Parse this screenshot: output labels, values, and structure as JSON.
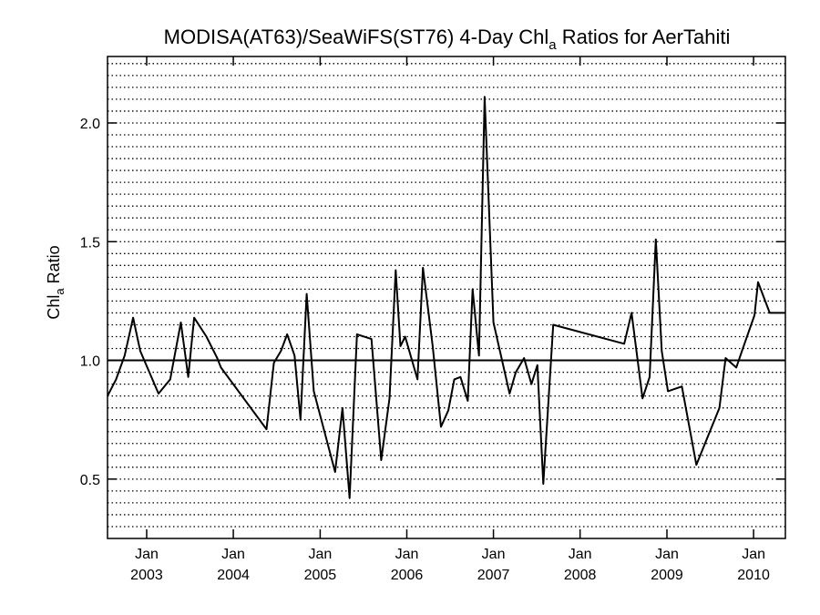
{
  "title": {
    "prefix": "MODISA(AT63)/SeaWiFS(ST76) 4-Day Chl",
    "subscript": "a",
    "suffix": " Ratios for AerTahiti"
  },
  "ylabel": {
    "prefix": "Chl",
    "subscript": "a",
    "suffix": " Ratio"
  },
  "chart_data": {
    "type": "line",
    "title": "MODISA(AT63)/SeaWiFS(ST76) 4-Day Chla Ratios for AerTahiti",
    "ylabel": "Chla Ratio",
    "xlabel": "",
    "xlim": [
      "2002-07-20",
      "2010-05-15"
    ],
    "ylim": [
      0.25,
      2.28
    ],
    "y_ticks": [
      0.5,
      1.0,
      1.5,
      2.0
    ],
    "y_tick_labels": [
      "0.5",
      "1.0",
      "1.5",
      "2.0"
    ],
    "x_ticks": [
      {
        "date": "2003-01-01",
        "month": "Jan",
        "year": "2003"
      },
      {
        "date": "2004-01-01",
        "month": "Jan",
        "year": "2004"
      },
      {
        "date": "2005-01-01",
        "month": "Jan",
        "year": "2005"
      },
      {
        "date": "2006-01-01",
        "month": "Jan",
        "year": "2006"
      },
      {
        "date": "2007-01-01",
        "month": "Jan",
        "year": "2007"
      },
      {
        "date": "2008-01-01",
        "month": "Jan",
        "year": "2008"
      },
      {
        "date": "2009-01-01",
        "month": "Jan",
        "year": "2009"
      },
      {
        "date": "2010-01-01",
        "month": "Jan",
        "year": "2010"
      }
    ],
    "grid": "horizontal dotted",
    "reference_line": 1.0,
    "series": [
      {
        "color": "#000000",
        "x": [
          "2002-07-20",
          "2002-08-25",
          "2002-09-30",
          "2002-11-05",
          "2002-12-05",
          "2003-02-20",
          "2003-04-10",
          "2003-05-25",
          "2003-06-25",
          "2003-07-20",
          "2003-09-10",
          "2003-10-25",
          "2003-11-10",
          "2004-05-20",
          "2004-06-20",
          "2004-07-20",
          "2004-08-15",
          "2004-09-15",
          "2004-10-10",
          "2004-11-05",
          "2004-12-05",
          "2005-03-05",
          "2005-04-05",
          "2005-05-05",
          "2005-06-05",
          "2005-08-05",
          "2005-09-15",
          "2005-10-20",
          "2005-11-15",
          "2005-12-05",
          "2005-12-25",
          "2006-02-15",
          "2006-03-10",
          "2006-04-20",
          "2006-05-25",
          "2006-06-25",
          "2006-07-20",
          "2006-08-15",
          "2006-09-15",
          "2006-10-05",
          "2006-11-01",
          "2006-11-25",
          "2007-01-01",
          "2007-03-10",
          "2007-04-05",
          "2007-05-10",
          "2007-06-10",
          "2007-07-05",
          "2007-07-30",
          "2007-09-10",
          "2008-07-05",
          "2008-08-05",
          "2008-09-20",
          "2008-10-20",
          "2008-11-15",
          "2008-12-10",
          "2009-01-05",
          "2009-03-05",
          "2009-05-05",
          "2009-08-10",
          "2009-09-05",
          "2009-10-20",
          "2009-11-20",
          "2010-01-05",
          "2010-01-20",
          "2010-03-10",
          "2010-04-15",
          "2010-05-15"
        ],
        "y": [
          0.85,
          0.92,
          1.02,
          1.18,
          1.04,
          0.86,
          0.92,
          1.16,
          0.93,
          1.18,
          1.1,
          1.01,
          0.97,
          0.71,
          0.99,
          1.04,
          1.11,
          1.02,
          0.75,
          1.28,
          0.87,
          0.53,
          0.8,
          0.42,
          1.11,
          1.09,
          0.58,
          0.84,
          1.38,
          1.06,
          1.1,
          0.92,
          1.39,
          1.06,
          0.72,
          0.79,
          0.92,
          0.93,
          0.83,
          1.3,
          1.02,
          2.11,
          1.16,
          0.86,
          0.95,
          1.01,
          0.9,
          0.98,
          0.48,
          1.15,
          1.07,
          1.2,
          0.84,
          0.93,
          1.51,
          1.04,
          0.87,
          0.89,
          0.56,
          0.8,
          1.01,
          0.97,
          1.06,
          1.19,
          1.33,
          1.2,
          1.2,
          1.2
        ]
      }
    ]
  }
}
